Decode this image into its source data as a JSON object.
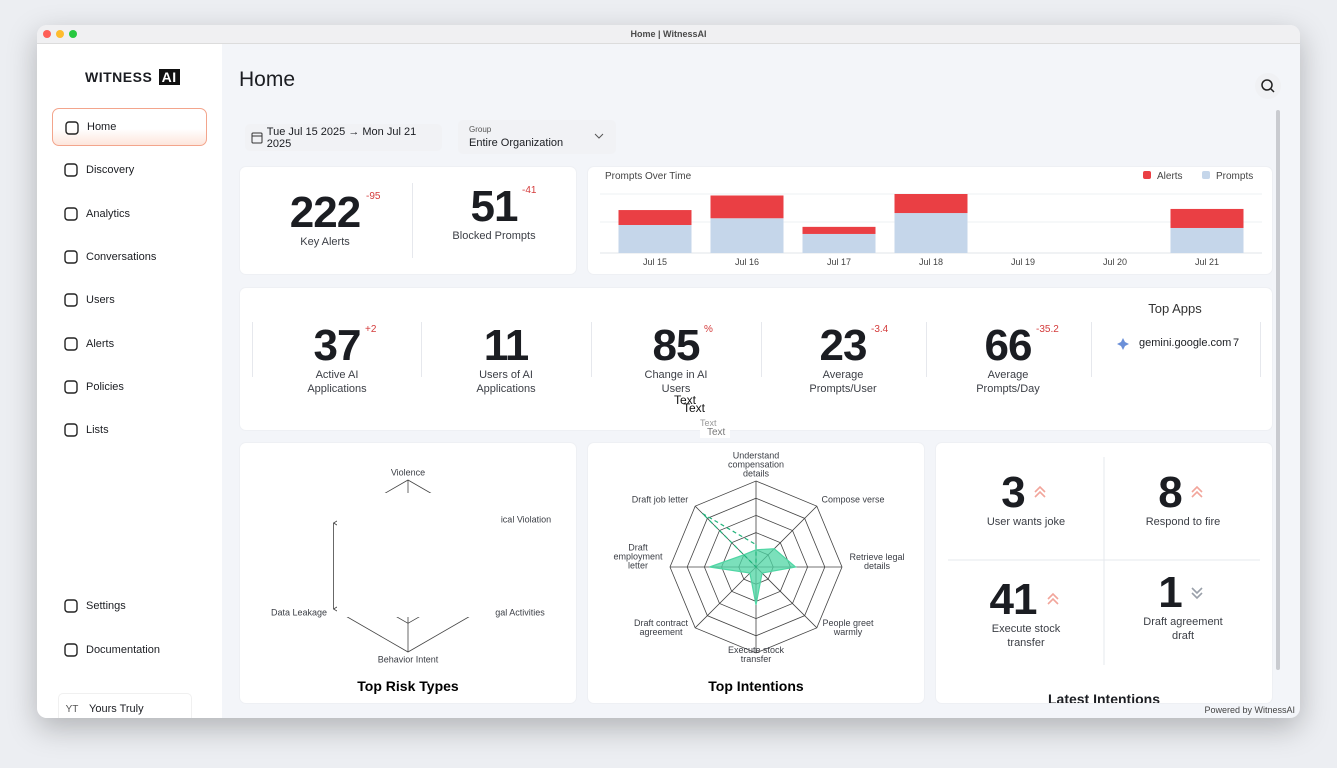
{
  "window": {
    "title": "Home | WitnessAI",
    "powered_by": "Powered by WitnessAI"
  },
  "sidebar": {
    "logo": "WITNESS",
    "logo_badge": "AI",
    "nav": [
      "Home",
      "Discovery",
      "Analytics",
      "Conversations",
      "Users",
      "Alerts",
      "Policies",
      "Lists"
    ],
    "footer_nav": [
      "Settings",
      "Documentation"
    ],
    "user": {
      "initials": "YT",
      "name": "Yours Truly"
    }
  },
  "header": {
    "title": "Home",
    "date_range": "Tue Jul 15 2025 → Mon Jul 21 2025",
    "group_label": "Group",
    "group_value": "Entire Organization"
  },
  "summary": [
    {
      "value": 222,
      "delta": -95,
      "label": "Key Alerts"
    },
    {
      "value": 51,
      "delta": -41,
      "label": "Blocked Prompts"
    }
  ],
  "metrics": [
    {
      "value": 37,
      "delta": "+2",
      "label": "Active AI Applications"
    },
    {
      "value": 11,
      "label": "Users of AI Applications"
    },
    {
      "value": 85,
      "delta": "%",
      "label": "Change in AI Users"
    },
    {
      "value": 23,
      "delta": -3.4,
      "label": "Average Prompts/User"
    },
    {
      "value": 66,
      "delta": -35.2,
      "label": "Average Prompts/Day"
    }
  ],
  "top_apps": {
    "title": "Top Apps",
    "items": [
      {
        "name": "gemini.google.com",
        "count": 7
      }
    ]
  },
  "overlay_texts": [
    "Text",
    "Text",
    "Text",
    "Text"
  ],
  "intentions": {
    "title": "Latest Intentions",
    "items": [
      {
        "count": 3,
        "label": "User wants joke",
        "trend": "up"
      },
      {
        "count": 8,
        "label": "Respond to fire",
        "trend": "up"
      },
      {
        "count": 41,
        "label": "Execute stock transfer",
        "trend": "up"
      },
      {
        "count": 1,
        "label": "Draft agreement draft",
        "trend": "down"
      }
    ]
  },
  "chart_data": [
    {
      "type": "bar",
      "stacked": true,
      "title": "Prompts Over Time",
      "categories": [
        "Jul 15",
        "Jul 16",
        "Jul 17",
        "Jul 18",
        "Jul 19",
        "Jul 20",
        "Jul 21"
      ],
      "series": [
        {
          "name": "Prompts",
          "color": "#c5d6ea",
          "values": [
            75,
            93,
            51,
            107,
            0,
            0,
            67
          ]
        },
        {
          "name": "Alerts",
          "color": "#ea3f44",
          "values": [
            40,
            61,
            19,
            51,
            0,
            0,
            51
          ]
        }
      ],
      "legend": "top-right"
    },
    {
      "type": "radar",
      "title": "Top Risk Types",
      "categories": [
        "Violence",
        "ical Violation",
        "gal Activities",
        "Behavior Intent",
        "Data Leakage",
        null
      ]
    },
    {
      "type": "radar",
      "title": "Top Intentions",
      "categories": [
        "Understand compensation details",
        "Compose verse",
        "Retrieve legal details",
        "People greet warmly",
        "Execute stock transfer",
        "Draft contract agreement",
        "Draft employment letter",
        "Draft job letter"
      ],
      "rlim": [
        0,
        5
      ],
      "series": [
        {
          "color": "#4fd6a4",
          "values": [
            1,
            1.5,
            2.3,
            0.5,
            2.2,
            0.5,
            2.7,
            1
          ]
        },
        {
          "color": "#1fb37a",
          "dashed": true,
          "values": [
            1.3,
            0,
            0,
            0,
            0,
            0,
            0,
            4.4
          ]
        }
      ]
    }
  ]
}
